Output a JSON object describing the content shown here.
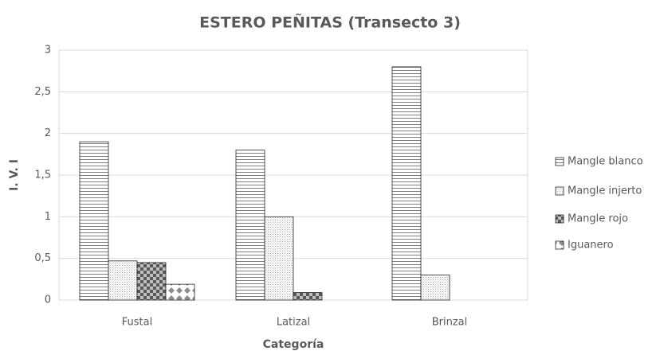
{
  "chart_data": {
    "type": "bar",
    "title": "ESTERO PEÑITAS (Transecto 3)",
    "x_label": "Categoría",
    "y_label": "I. V. I",
    "categories": [
      "Fustal",
      "Latizal",
      "Brinzal"
    ],
    "series": [
      {
        "name": "Mangle blanco",
        "color": "#7f7f7f",
        "values": [
          1.9,
          1.8,
          2.8
        ]
      },
      {
        "name": "Mangle injerto",
        "color": "#a6a6a6",
        "values": [
          0.47,
          1.0,
          0.3
        ]
      },
      {
        "name": "Mangle rojo",
        "color": "#595959",
        "values": [
          0.45,
          0.09,
          0
        ]
      },
      {
        "name": "Iguanero",
        "color": "#8c8c8c",
        "values": [
          0.19,
          0,
          0
        ]
      }
    ],
    "ylim": [
      0,
      3
    ],
    "yticks": [
      0,
      {
        "value": 0.5,
        "label": "0,5"
      },
      1,
      {
        "value": 1.5,
        "label": "1,5"
      },
      2,
      {
        "value": 2.5,
        "label": "2,5"
      },
      3
    ],
    "grid": true,
    "legend": "right"
  }
}
